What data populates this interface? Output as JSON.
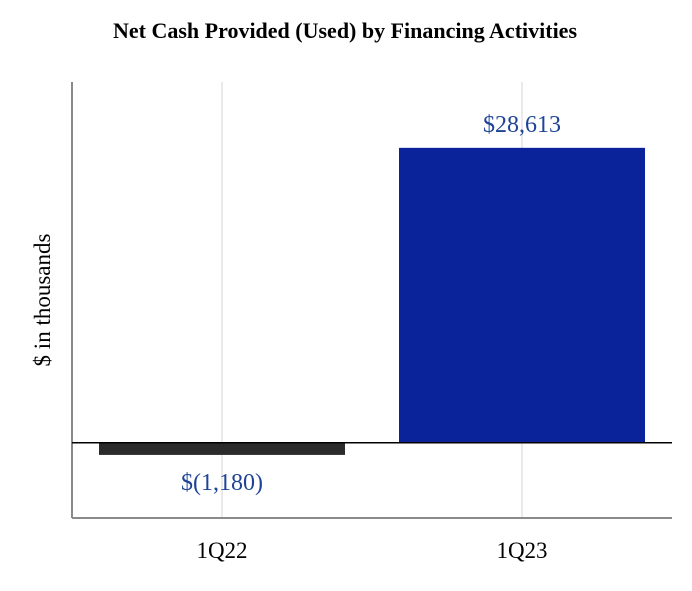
{
  "chart_data": {
    "type": "bar",
    "title": "Net Cash Provided (Used) by Financing Activities",
    "xlabel": "",
    "ylabel": "$ in thousands",
    "categories": [
      "1Q22",
      "1Q23"
    ],
    "values": [
      -1180,
      28613
    ],
    "data_labels": [
      "$(1,180)",
      "$28,613"
    ],
    "ylim": [
      -7300,
      35000
    ],
    "grid": {
      "vertical": true,
      "horizontal": false
    },
    "legend": "none"
  },
  "colors": {
    "bars": [
      "#2b2b2b",
      "#0b239a"
    ],
    "label_text": "#1f4496",
    "gridline": "#e3e3e3",
    "axis": "#8a8a8a",
    "zero_line": "#000000",
    "title_text": "#000000"
  }
}
